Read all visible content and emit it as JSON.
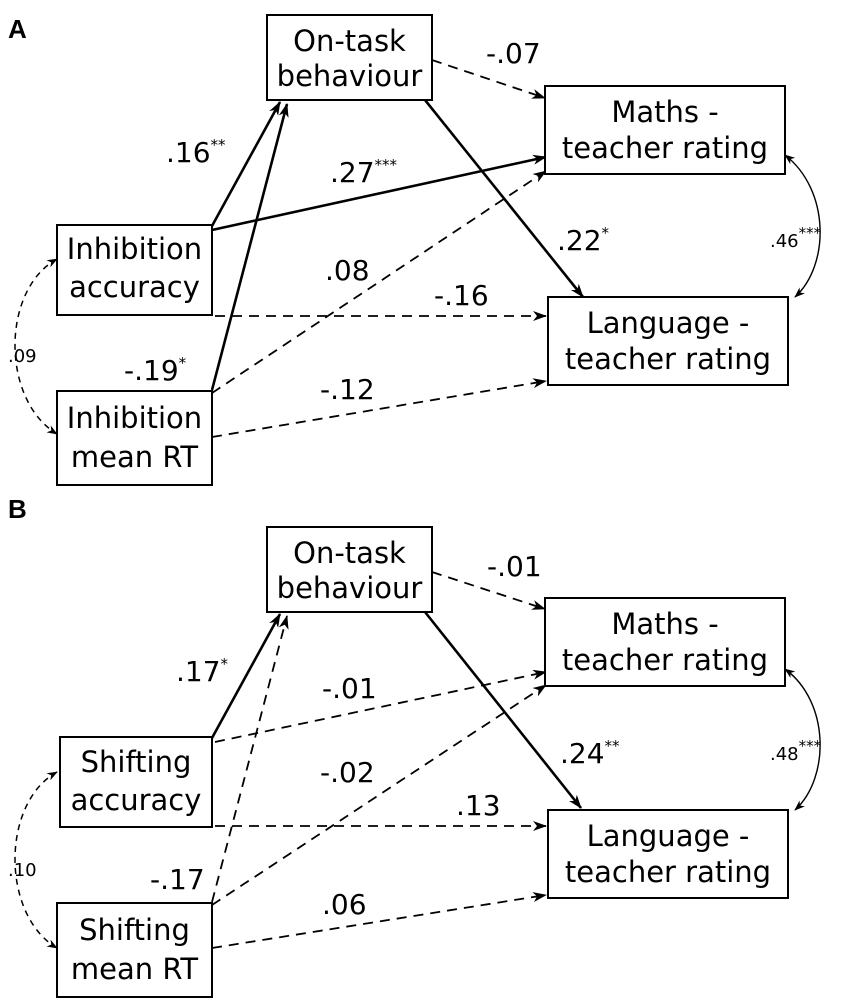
{
  "panels": [
    {
      "label": "A",
      "nodes": {
        "on_task": [
          "On-task",
          "behaviour"
        ],
        "maths": [
          "Maths -",
          "teacher rating"
        ],
        "language": [
          "Language -",
          "teacher rating"
        ],
        "accuracy": [
          "Inhibition",
          "accuracy"
        ],
        "rt": [
          "Inhibition",
          "mean RT"
        ]
      },
      "paths": [
        {
          "from": "On-task behaviour",
          "to": "Maths - teacher rating",
          "coef": "-.07",
          "sig": ""
        },
        {
          "from": "On-task behaviour",
          "to": "Language - teacher rating",
          "coef": ".22",
          "sig": "*"
        },
        {
          "from": "Inhibition accuracy",
          "to": "On-task behaviour",
          "coef": ".16",
          "sig": "**"
        },
        {
          "from": "Inhibition accuracy",
          "to": "Maths - teacher rating",
          "coef": ".27",
          "sig": "***"
        },
        {
          "from": "Inhibition accuracy",
          "to": "Language - teacher rating",
          "coef": "-.16",
          "sig": ""
        },
        {
          "from": "Inhibition mean RT",
          "to": "On-task behaviour",
          "coef": "-.19",
          "sig": "*"
        },
        {
          "from": "Inhibition mean RT",
          "to": "Maths - teacher rating",
          "coef": ".08",
          "sig": ""
        },
        {
          "from": "Inhibition mean RT",
          "to": "Language - teacher rating",
          "coef": "-.12",
          "sig": ""
        }
      ],
      "correlations": [
        {
          "between": "Maths - Language",
          "coef": ".46",
          "sig": "***"
        },
        {
          "between": "accuracy - mean RT",
          "coef": ".09",
          "sig": ""
        }
      ]
    },
    {
      "label": "B",
      "nodes": {
        "on_task": [
          "On-task",
          "behaviour"
        ],
        "maths": [
          "Maths -",
          "teacher rating"
        ],
        "language": [
          "Language -",
          "teacher rating"
        ],
        "accuracy": [
          "Shifting",
          "accuracy"
        ],
        "rt": [
          "Shifting",
          "mean RT"
        ]
      },
      "paths": [
        {
          "from": "On-task behaviour",
          "to": "Maths - teacher rating",
          "coef": "-.01",
          "sig": ""
        },
        {
          "from": "On-task behaviour",
          "to": "Language - teacher rating",
          "coef": ".24",
          "sig": "**"
        },
        {
          "from": "Shifting accuracy",
          "to": "On-task behaviour",
          "coef": ".17",
          "sig": "*"
        },
        {
          "from": "Shifting accuracy",
          "to": "Maths - teacher rating",
          "coef": "-.01",
          "sig": ""
        },
        {
          "from": "Shifting accuracy",
          "to": "Language - teacher rating",
          "coef": ".13",
          "sig": ""
        },
        {
          "from": "Shifting mean RT",
          "to": "On-task behaviour",
          "coef": "-.17",
          "sig": ""
        },
        {
          "from": "Shifting mean RT",
          "to": "Maths - teacher rating",
          "coef": "-.02",
          "sig": ""
        },
        {
          "from": "Shifting mean RT",
          "to": "Language - teacher rating",
          "coef": ".06",
          "sig": ""
        }
      ],
      "correlations": [
        {
          "between": "Maths - Language",
          "coef": ".48",
          "sig": "***"
        },
        {
          "between": "accuracy - mean RT",
          "coef": ".10",
          "sig": ""
        }
      ]
    }
  ]
}
